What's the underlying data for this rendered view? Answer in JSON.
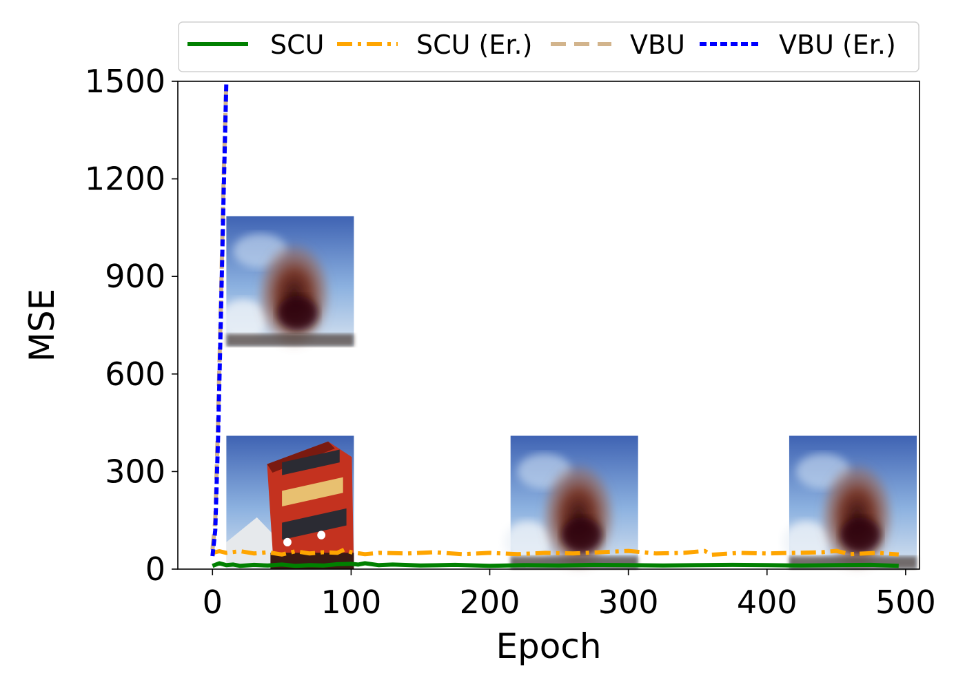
{
  "chart_data": {
    "type": "line",
    "title": "",
    "xlabel": "Epoch",
    "ylabel": "MSE",
    "xlim": [
      -25,
      510
    ],
    "ylim": [
      0,
      1500
    ],
    "xticks": [
      0,
      100,
      200,
      300,
      400,
      500
    ],
    "yticks": [
      0,
      300,
      600,
      900,
      1200,
      1500
    ],
    "xtick_labels": [
      "0",
      "100",
      "200",
      "300",
      "400",
      "500"
    ],
    "ytick_labels": [
      "0",
      "300",
      "600",
      "900",
      "1200",
      "1500"
    ],
    "grid": false,
    "legend_position": "top",
    "series": [
      {
        "name": "SCU",
        "color": "#008000",
        "style": "solid",
        "x": [
          0,
          5,
          10,
          15,
          20,
          30,
          40,
          50,
          60,
          70,
          80,
          90,
          100,
          105,
          110,
          120,
          130,
          150,
          175,
          200,
          225,
          250,
          275,
          300,
          325,
          350,
          375,
          400,
          425,
          450,
          475,
          495
        ],
        "y": [
          10,
          18,
          12,
          14,
          10,
          13,
          11,
          14,
          10,
          12,
          11,
          15,
          16,
          14,
          18,
          12,
          14,
          11,
          13,
          10,
          12,
          11,
          13,
          12,
          11,
          12,
          13,
          12,
          11,
          12,
          13,
          10
        ]
      },
      {
        "name": "SCU (Er.)",
        "color": "#FFA500",
        "style": "dashdot",
        "x": [
          0,
          5,
          10,
          20,
          30,
          40,
          50,
          60,
          70,
          80,
          90,
          95,
          100,
          110,
          120,
          140,
          160,
          180,
          200,
          220,
          240,
          260,
          280,
          300,
          320,
          340,
          355,
          360,
          380,
          400,
          420,
          440,
          450,
          460,
          480,
          495
        ],
        "y": [
          50,
          55,
          50,
          55,
          48,
          52,
          45,
          55,
          48,
          52,
          50,
          60,
          52,
          46,
          50,
          48,
          52,
          46,
          50,
          46,
          50,
          48,
          52,
          56,
          48,
          50,
          56,
          44,
          50,
          48,
          50,
          52,
          56,
          46,
          50,
          45
        ]
      },
      {
        "name": "VBU",
        "color": "#D2B48C",
        "style": "dashed",
        "x": [
          0,
          2,
          4,
          6,
          8,
          10
        ],
        "y": [
          60,
          150,
          450,
          800,
          1200,
          1500
        ]
      },
      {
        "name": "VBU (Er.)",
        "color": "#0000FF",
        "style": "dotted",
        "x": [
          0,
          2,
          4,
          6,
          8,
          10
        ],
        "y": [
          40,
          120,
          400,
          760,
          1150,
          1500
        ]
      }
    ],
    "image_insets": [
      {
        "name": "reconstruction-vbu-inset",
        "x": 10,
        "y": 685,
        "x2": 102,
        "y2": 1085
      },
      {
        "name": "original-bus-inset",
        "x": 10,
        "y": 0,
        "x2": 102,
        "y2": 410
      },
      {
        "name": "reconstruction-epoch-300-inset",
        "x": 215,
        "y": 0,
        "x2": 307,
        "y2": 410
      },
      {
        "name": "reconstruction-epoch-500-inset",
        "x": 416,
        "y": 0,
        "x2": 508,
        "y2": 410
      }
    ]
  }
}
